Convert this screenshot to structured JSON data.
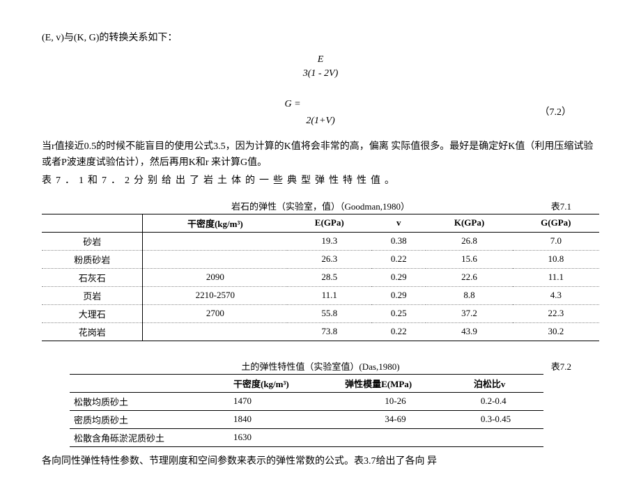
{
  "intro": "(E, v)与(K, G)的转换关系如下：",
  "formula1": {
    "line1": "E",
    "line2": "3(1 - 2V)"
  },
  "formula2": {
    "lhs": "G =",
    "denom": "2(1+V)",
    "eqnum": "（7.2）"
  },
  "para1": "当r值接近0.5的时候不能盲目的使用公式3.5，因为计算的K值将会非常的高，偏离 实际值很多。最好是确定好K值（利用压缩试验或者P波速度试验估计），然后再用K和r 来计算G值。",
  "para2": "表7．1和7．2分别给出了岩土体的一些典型弹性特性值。",
  "table1": {
    "caption": "岩石的弹性（实验室，值）（Goodman,1980）",
    "num": "表7.1",
    "headers": [
      "",
      "干密度(kg/m³)",
      "E(GPa)",
      "v",
      "K(GPa)",
      "G(GPa)"
    ],
    "rows": [
      [
        "砂岩",
        "",
        "19.3",
        "0.38",
        "26.8",
        "7.0"
      ],
      [
        "粉质砂岩",
        "",
        "26.3",
        "0.22",
        "15.6",
        "10.8"
      ],
      [
        "石灰石",
        "2090",
        "28.5",
        "0.29",
        "22.6",
        "11.1"
      ],
      [
        "页岩",
        "2210-2570",
        "11.1",
        "0.29",
        "8.8",
        "4.3"
      ],
      [
        "大理石",
        "2700",
        "55.8",
        "0.25",
        "37.2",
        "22.3"
      ],
      [
        "花岗岩",
        "",
        "73.8",
        "0.22",
        "43.9",
        "30.2"
      ]
    ]
  },
  "table2": {
    "caption": "土的弹性特性值（实验室值）(Das,1980)",
    "num": "表7.2",
    "headers": [
      "",
      "干密度(kg/m³)",
      "弹性模量E(MPa)",
      "泊松比v"
    ],
    "rows": [
      [
        "松散均质砂土",
        "1470",
        "10-26",
        "0.2-0.4"
      ],
      [
        "密质均质砂土",
        "1840",
        "34-69",
        "0.3-0.45"
      ],
      [
        "松散含角砾淤泥质砂土",
        "1630",
        "",
        ""
      ]
    ]
  },
  "para3": "各向同性弹性特性参数、节理刚度和空间参数来表示的弹性常数的公式。表3.7给出了各向 异"
}
